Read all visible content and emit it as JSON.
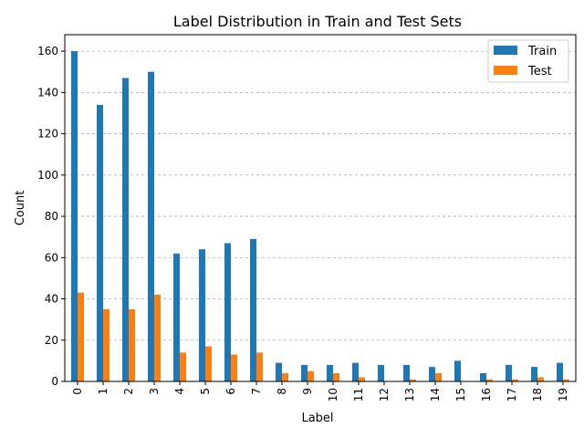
{
  "chart_data": {
    "type": "bar",
    "title": "Label Distribution in Train and Test Sets",
    "xlabel": "Label",
    "ylabel": "Count",
    "categories": [
      "0",
      "1",
      "2",
      "3",
      "4",
      "5",
      "6",
      "7",
      "8",
      "9",
      "10",
      "11",
      "12",
      "13",
      "14",
      "15",
      "16",
      "17",
      "18",
      "19"
    ],
    "series": [
      {
        "name": "Train",
        "color": "#1f77b4",
        "values": [
          160,
          134,
          147,
          150,
          62,
          64,
          67,
          69,
          9,
          8,
          8,
          9,
          8,
          8,
          7,
          10,
          4,
          8,
          7,
          9
        ]
      },
      {
        "name": "Test",
        "color": "#ff7f0e",
        "values": [
          43,
          35,
          35,
          42,
          14,
          17,
          13,
          14,
          4,
          5,
          4,
          2,
          0,
          1,
          4,
          0,
          1,
          1,
          2,
          1
        ]
      }
    ],
    "ylim": [
      0,
      168
    ],
    "yticks": [
      0,
      20,
      40,
      60,
      80,
      100,
      120,
      140,
      160
    ],
    "grid": "y-dashed",
    "legend_position": "top-right"
  }
}
